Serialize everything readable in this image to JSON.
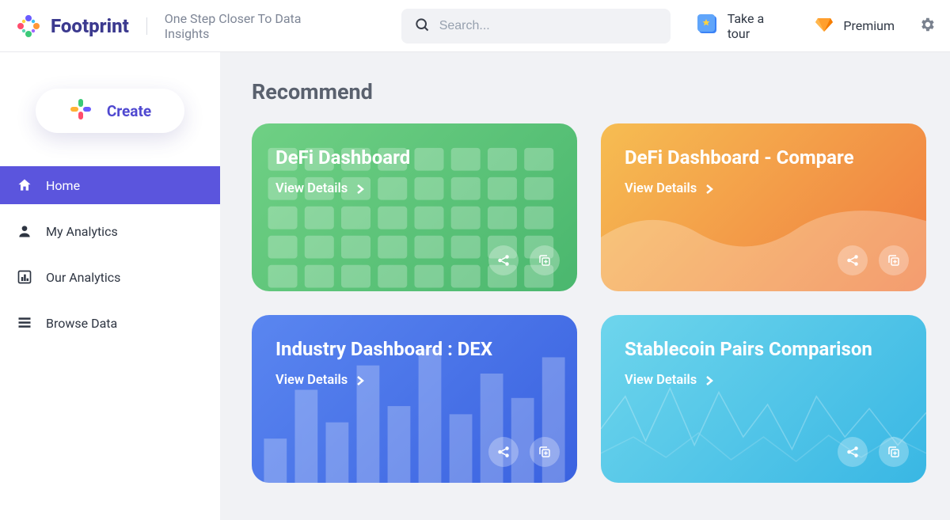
{
  "header": {
    "brand": "Footprint",
    "tagline": "One Step Closer To Data Insights",
    "search_placeholder": "Search...",
    "tour_label": "Take a tour",
    "premium_label": "Premium"
  },
  "sidebar": {
    "create_label": "Create",
    "items": [
      {
        "icon": "home",
        "label": "Home",
        "active": true
      },
      {
        "icon": "person",
        "label": "My Analytics",
        "active": false
      },
      {
        "icon": "chart",
        "label": "Our Analytics",
        "active": false
      },
      {
        "icon": "browse",
        "label": "Browse Data",
        "active": false
      }
    ]
  },
  "main": {
    "section_title": "Recommend",
    "view_details_label": "View Details",
    "cards": [
      {
        "title": "DeFi Dashboard",
        "gradient": [
          "#6fd084",
          "#4ab76e"
        ],
        "bg": "bars"
      },
      {
        "title": "DeFi Dashboard - Compare",
        "gradient": [
          "#f6bd52",
          "#f07b3f"
        ],
        "bg": "wave"
      },
      {
        "title": "Industry Dashboard : DEX",
        "gradient": [
          "#5a86f0",
          "#3a62e0"
        ],
        "bg": "bars2"
      },
      {
        "title": "Stablecoin Pairs Comparison",
        "gradient": [
          "#6ed5ec",
          "#39b7e4"
        ],
        "bg": "line"
      }
    ]
  },
  "colors": {
    "primary": "#5b55dd",
    "brand_text": "#3c3a8f",
    "text_muted": "#7e8696",
    "page_bg": "#f1f2f5"
  }
}
